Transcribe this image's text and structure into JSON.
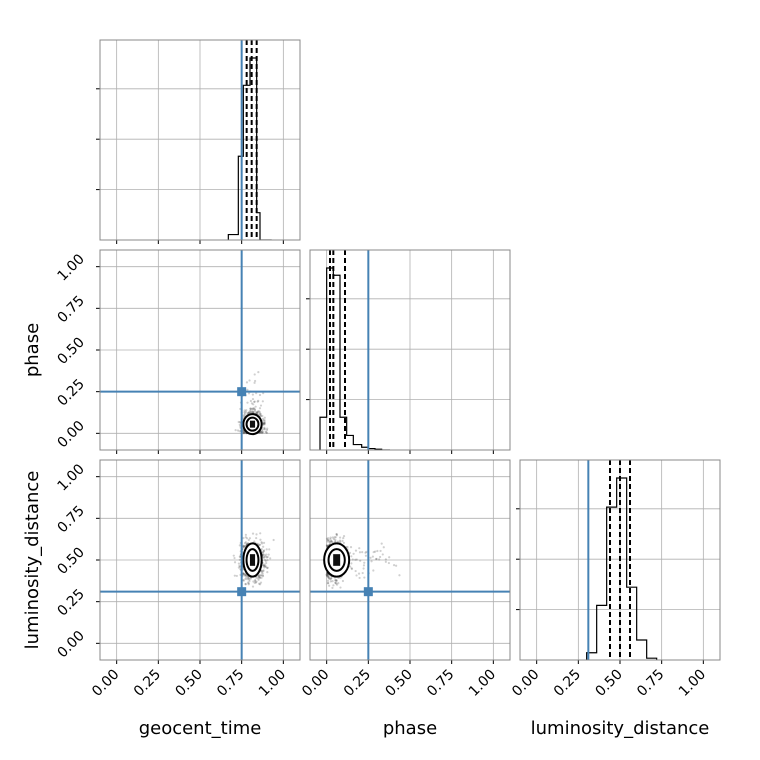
{
  "chart_data": {
    "type": "corner",
    "parameters": [
      "geocent_time",
      "phase",
      "luminosity_distance"
    ],
    "ranges": {
      "geocent_time": [
        -0.1,
        1.1
      ],
      "phase": [
        -0.1,
        1.1
      ],
      "luminosity_distance": [
        -0.1,
        1.1
      ]
    },
    "ticks": [
      0.0,
      0.25,
      0.5,
      0.75,
      1.0
    ],
    "tick_labels": [
      "0.00",
      "0.25",
      "0.50",
      "0.75",
      "1.00"
    ],
    "truths": {
      "geocent_time": 0.75,
      "phase": 0.25,
      "luminosity_distance": 0.31
    },
    "quantiles": {
      "geocent_time": [
        0.78,
        0.81,
        0.84
      ],
      "phase": [
        0.02,
        0.04,
        0.11
      ],
      "luminosity_distance": [
        0.44,
        0.5,
        0.56
      ]
    },
    "histograms": {
      "geocent_time": {
        "edges": [
          0.67,
          0.73,
          0.76,
          0.8,
          0.84,
          0.86,
          0.93
        ],
        "heights": [
          0.03,
          0.46,
          0.85,
          1.0,
          0.15,
          0.0
        ]
      },
      "phase": {
        "edges": [
          -0.04,
          0.0,
          0.04,
          0.08,
          0.12,
          0.16,
          0.21,
          0.25,
          0.29,
          0.33,
          0.38
        ],
        "heights": [
          0.18,
          1.0,
          0.96,
          0.18,
          0.08,
          0.03,
          0.015,
          0.008,
          0.004,
          0.0
        ]
      },
      "luminosity_distance": {
        "edges": [
          0.3,
          0.36,
          0.42,
          0.48,
          0.54,
          0.6,
          0.66,
          0.72
        ],
        "heights": [
          0.04,
          0.3,
          0.84,
          1.0,
          0.4,
          0.11,
          0.01
        ]
      }
    },
    "grid": true,
    "truth_color": "#4682b4",
    "contour_color": "#000000"
  }
}
